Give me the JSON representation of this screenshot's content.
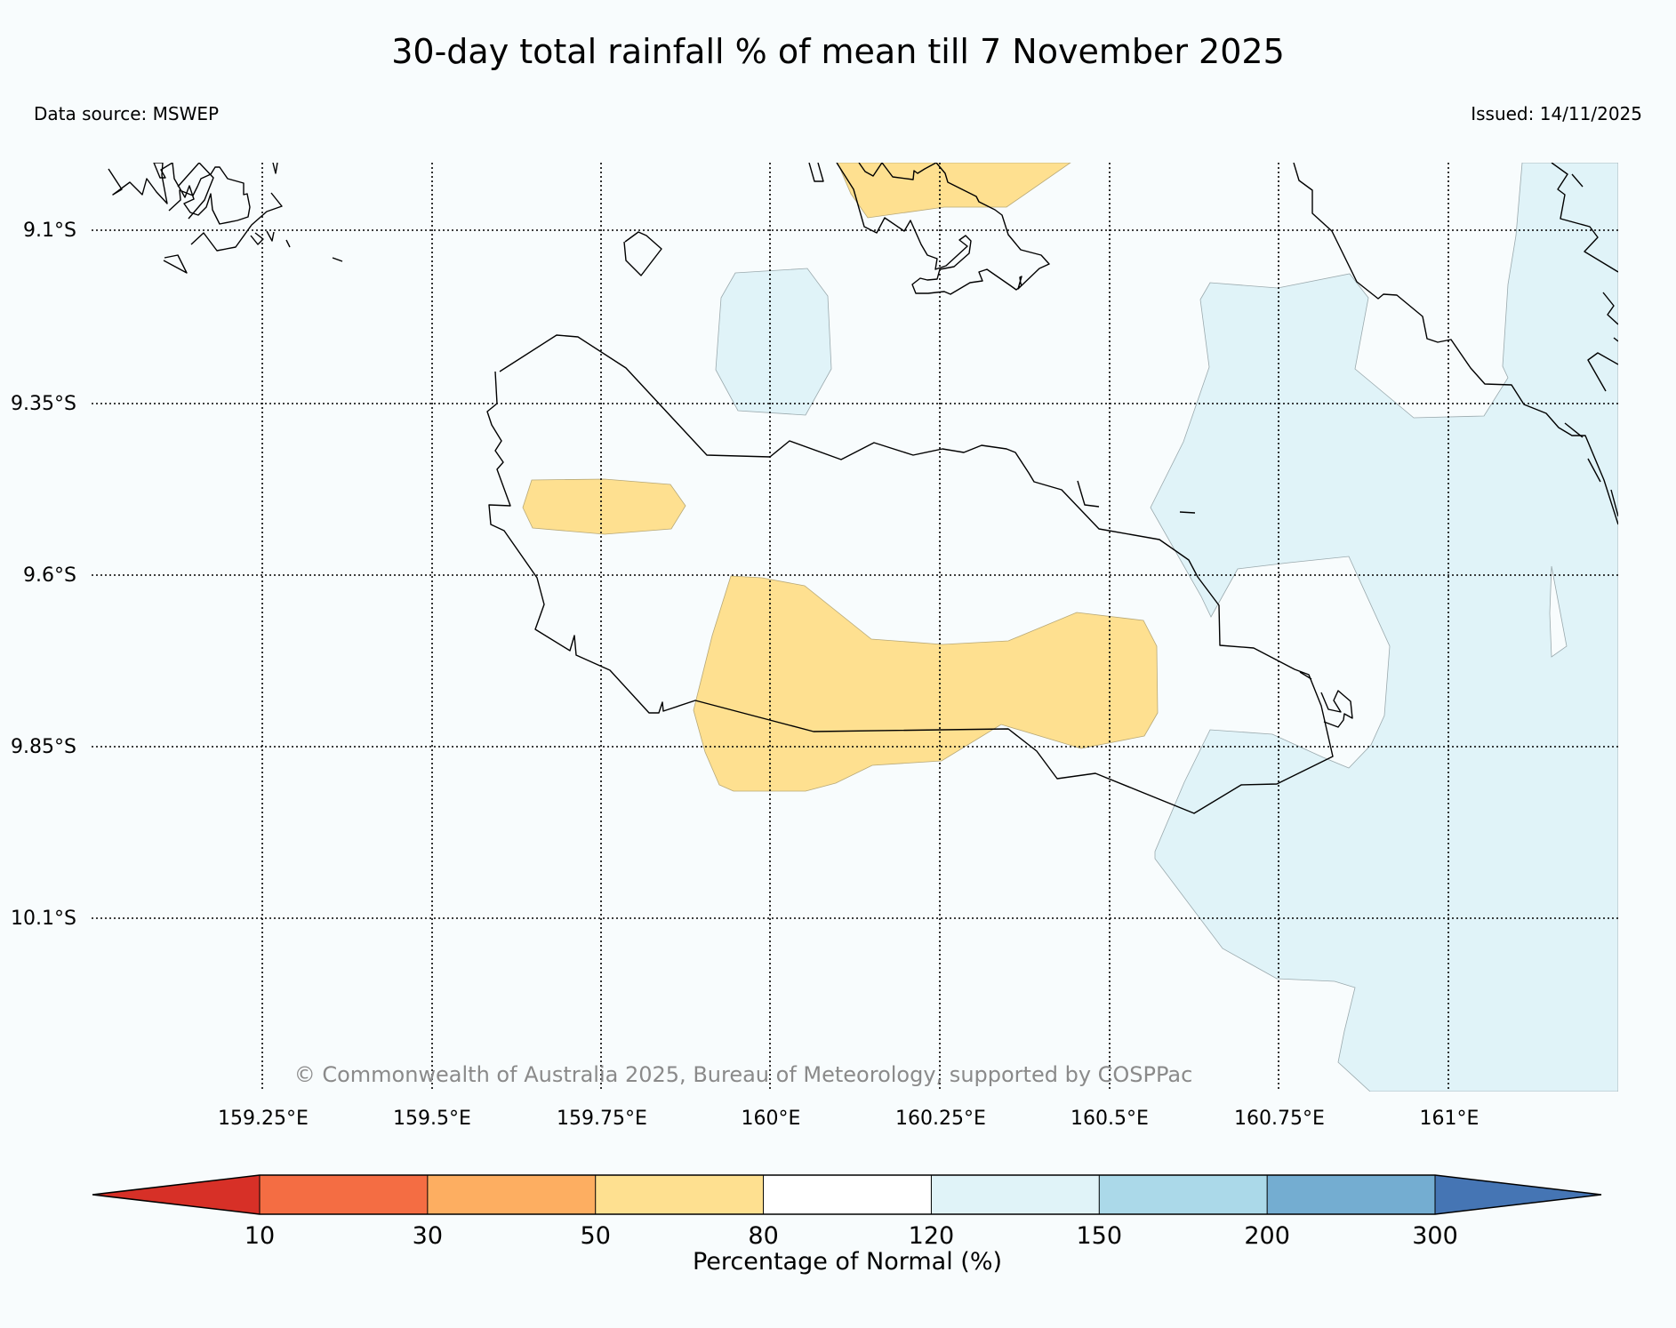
{
  "map": {
    "title": "30-day total rainfall % of mean till 7 November 2025",
    "data_source": "Data source: MSWEP",
    "issued": "Issued: 14/11/2025",
    "copyright": "© Commonwealth of Australia 2025, Bureau of Meteorology, supported by COSPPac",
    "lat_ticks": [
      "9.1°S",
      "9.35°S",
      "9.6°S",
      "9.85°S",
      "10.1°S"
    ],
    "lon_ticks": [
      "159.25°E",
      "159.5°E",
      "159.75°E",
      "160°E",
      "160.25°E",
      "160.5°E",
      "160.75°E",
      "161°E"
    ]
  },
  "colorbar": {
    "label": "Percentage of Normal (%)",
    "ticks": [
      "10",
      "30",
      "50",
      "80",
      "120",
      "150",
      "200",
      "300"
    ],
    "colors": [
      "#d73027",
      "#f46d43",
      "#fdae61",
      "#fee090",
      "#ffffff",
      "#e0f3f8",
      "#abd9e9",
      "#74add1",
      "#4575b4"
    ]
  },
  "palette": {
    "dry": "#fee090",
    "wet": "#e0f3f8",
    "background": "#f8fcfd"
  }
}
